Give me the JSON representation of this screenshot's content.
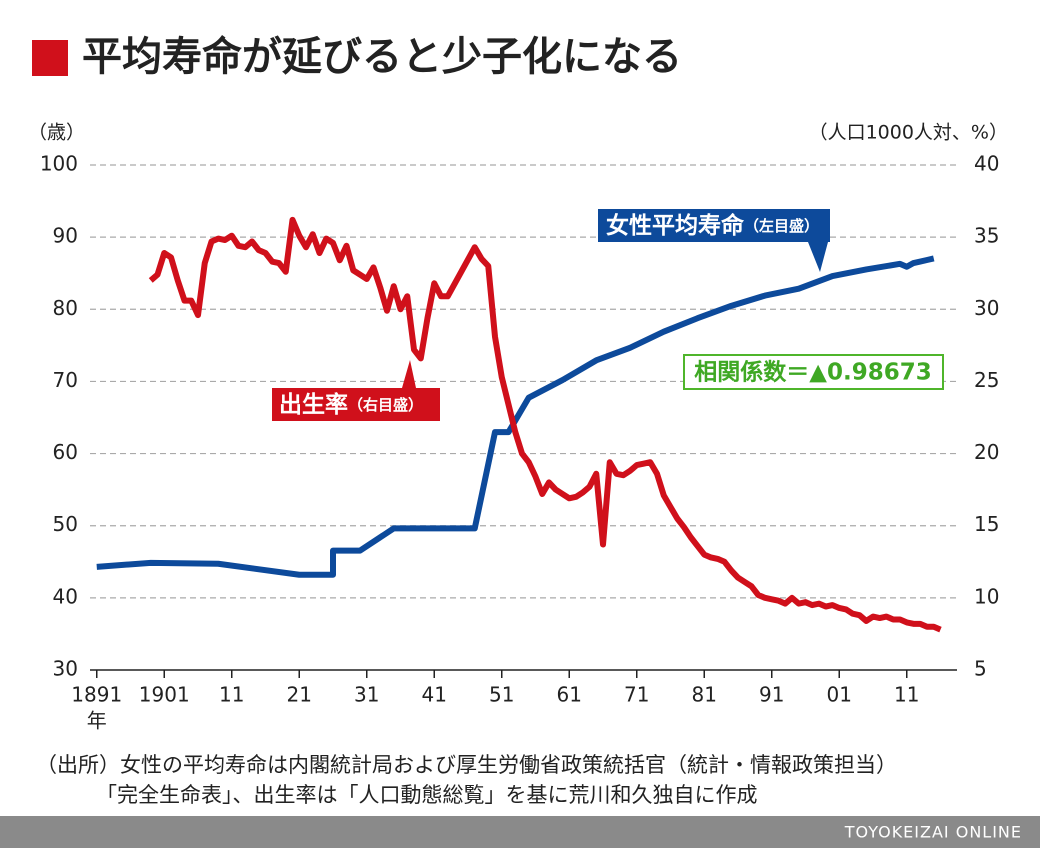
{
  "chart_data": {
    "type": "line",
    "title": "平均寿命が延びると少子化になる",
    "y_label": "（歳）",
    "y2_label": "（人口1000人対、%）",
    "x_unit": "年",
    "xlim": [
      1890,
      2018
    ],
    "xticks": [
      {
        "value": 1891,
        "label": "1891"
      },
      {
        "value": 1901,
        "label": "1901"
      },
      {
        "value": 1911,
        "label": "11"
      },
      {
        "value": 1921,
        "label": "21"
      },
      {
        "value": 1931,
        "label": "31"
      },
      {
        "value": 1941,
        "label": "41"
      },
      {
        "value": 1951,
        "label": "51"
      },
      {
        "value": 1961,
        "label": "61"
      },
      {
        "value": 1971,
        "label": "71"
      },
      {
        "value": 1981,
        "label": "81"
      },
      {
        "value": 1991,
        "label": "91"
      },
      {
        "value": 2001,
        "label": "01"
      },
      {
        "value": 2011,
        "label": "11"
      }
    ],
    "ylim": [
      30,
      100
    ],
    "yticks": [
      30,
      40,
      50,
      60,
      70,
      80,
      90,
      100
    ],
    "y2lim": [
      5,
      40
    ],
    "y2ticks": [
      5,
      10,
      15,
      20,
      25,
      30,
      35,
      40
    ],
    "grid": true,
    "series": [
      {
        "name": "女性平均寿命",
        "note": "（左目盛）",
        "color": "#0d4a9b",
        "x": [
          1891,
          1899,
          1909,
          1921,
          1926,
          1926,
          1930,
          1935,
          1947,
          1950,
          1952,
          1955,
          1960,
          1965,
          1970,
          1975,
          1980,
          1985,
          1990,
          1995,
          2000,
          2005,
          2010,
          2011,
          2012,
          2013,
          2014,
          2015
        ],
        "values": [
          44.3,
          44.85,
          44.73,
          43.2,
          43.2,
          46.54,
          46.54,
          49.63,
          49.63,
          62.97,
          62.97,
          67.75,
          70.19,
          72.92,
          74.66,
          76.89,
          78.76,
          80.48,
          81.9,
          82.85,
          84.6,
          85.52,
          86.3,
          85.9,
          86.41,
          86.61,
          86.83,
          87.05
        ]
      },
      {
        "name": "出生率",
        "note": "（右目盛）",
        "color": "#d0101b",
        "axis": "y2",
        "x": [
          1899,
          1900,
          1901,
          1902,
          1903,
          1904,
          1905,
          1906,
          1907,
          1908,
          1909,
          1910,
          1911,
          1912,
          1913,
          1914,
          1915,
          1916,
          1917,
          1918,
          1919,
          1920,
          1921,
          1922,
          1923,
          1924,
          1925,
          1926,
          1927,
          1928,
          1929,
          1930,
          1931,
          1932,
          1933,
          1934,
          1935,
          1936,
          1937,
          1938,
          1939,
          1940,
          1941,
          1942,
          1943,
          1947,
          1948,
          1949,
          1950,
          1951,
          1952,
          1953,
          1954,
          1955,
          1956,
          1957,
          1958,
          1959,
          1960,
          1961,
          1962,
          1963,
          1964,
          1965,
          1966,
          1967,
          1968,
          1969,
          1970,
          1971,
          1972,
          1973,
          1974,
          1975,
          1976,
          1977,
          1978,
          1979,
          1980,
          1981,
          1982,
          1983,
          1984,
          1985,
          1986,
          1987,
          1988,
          1989,
          1990,
          1991,
          1992,
          1993,
          1994,
          1995,
          1996,
          1997,
          1998,
          1999,
          2000,
          2001,
          2002,
          2003,
          2004,
          2005,
          2006,
          2007,
          2008,
          2009,
          2010,
          2011,
          2012,
          2013,
          2014,
          2015,
          2016
        ],
        "values": [
          32.0,
          32.4,
          33.9,
          33.6,
          32.0,
          30.6,
          30.6,
          29.6,
          33.2,
          34.7,
          34.9,
          34.8,
          35.1,
          34.4,
          34.3,
          34.7,
          34.1,
          33.9,
          33.3,
          33.2,
          32.6,
          36.2,
          35.1,
          34.3,
          35.2,
          33.9,
          34.9,
          34.6,
          33.4,
          34.4,
          32.7,
          32.4,
          32.1,
          32.9,
          31.5,
          29.9,
          31.6,
          30.0,
          30.9,
          27.2,
          26.6,
          29.4,
          31.8,
          30.9,
          30.9,
          34.3,
          33.5,
          33.0,
          28.1,
          25.3,
          23.4,
          21.5,
          20.0,
          19.4,
          18.4,
          17.2,
          18.0,
          17.5,
          17.2,
          16.9,
          17.0,
          17.3,
          17.7,
          18.6,
          13.7,
          19.4,
          18.6,
          18.5,
          18.8,
          19.2,
          19.3,
          19.4,
          18.6,
          17.1,
          16.3,
          15.5,
          14.9,
          14.2,
          13.6,
          13.0,
          12.8,
          12.7,
          12.5,
          11.9,
          11.4,
          11.1,
          10.8,
          10.2,
          10.0,
          9.9,
          9.8,
          9.6,
          10.0,
          9.6,
          9.7,
          9.5,
          9.6,
          9.4,
          9.5,
          9.3,
          9.2,
          8.9,
          8.8,
          8.4,
          8.7,
          8.6,
          8.7,
          8.5,
          8.5,
          8.3,
          8.2,
          8.2,
          8.0,
          8.0,
          7.8
        ]
      }
    ],
    "annotation": "相関係数＝▲0.98673",
    "source": [
      "（出所）女性の平均寿命は内閣統計局および厚生労働省政策統括官（統計・情報政策担当）",
      "「完全生命表」、出生率は「人口動態総覧」を基に荒川和久独自に作成"
    ],
    "footer": "TOYOKEIZAI ONLINE"
  }
}
